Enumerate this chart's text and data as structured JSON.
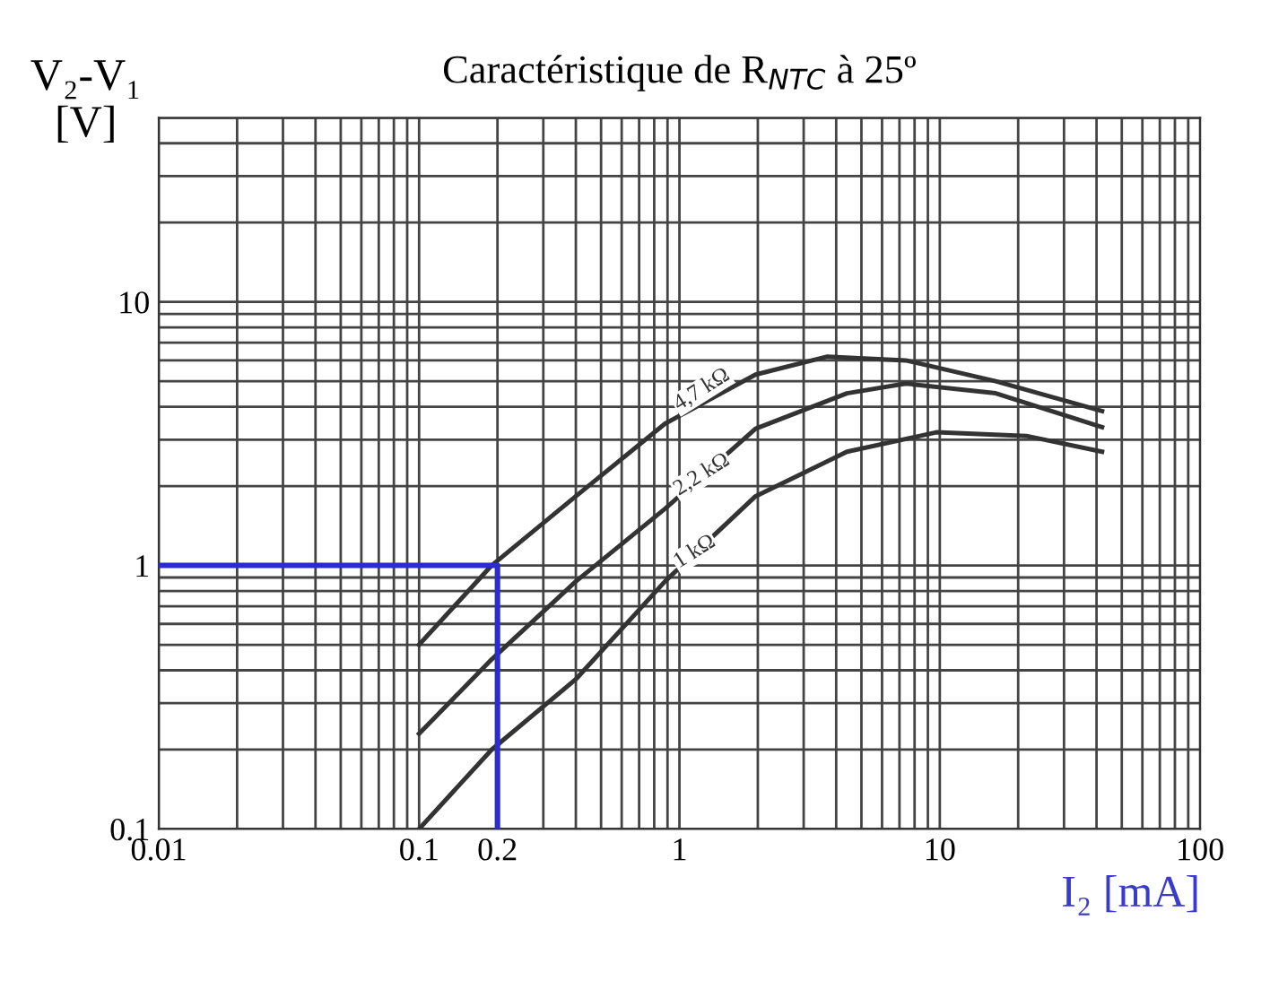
{
  "chart_data": {
    "type": "line",
    "title": "Caractéristique de R$_{NTC}$ à 25º",
    "ylabel": "V₂-V₁\n[V]",
    "xlabel": "I₂ [mA]",
    "log": "xy",
    "xlim": [
      0.01,
      100
    ],
    "ylim": [
      0.1,
      50
    ],
    "xticks": [
      0.01,
      0.1,
      0.2,
      1,
      10,
      100
    ],
    "yticks": [
      0.1,
      1,
      10
    ],
    "grid": true,
    "line_style": "solid",
    "marker": "none",
    "series": [
      {
        "name": "4,7 kΩ",
        "color": "#333333",
        "x": [
          0.1,
          0.19,
          0.4,
          0.88,
          1.96,
          3.7,
          7.4,
          16.4,
          42
        ],
        "values": [
          0.5,
          1.0,
          1.83,
          3.45,
          5.3,
          6.2,
          6.0,
          5.0,
          3.85
        ]
      },
      {
        "name": "2,2 kΩ",
        "color": "#333333",
        "x": [
          0.1,
          0.19,
          0.4,
          0.88,
          1.96,
          4.4,
          7.4,
          16.4,
          42
        ],
        "values": [
          0.23,
          0.44,
          0.87,
          1.64,
          3.3,
          4.5,
          4.9,
          4.5,
          3.35
        ]
      },
      {
        "name": "1 kΩ",
        "color": "#333333",
        "x": [
          0.1,
          0.19,
          0.4,
          0.88,
          1.96,
          4.4,
          9.7,
          21.5,
          42
        ],
        "values": [
          0.1,
          0.2,
          0.37,
          0.87,
          1.83,
          2.7,
          3.2,
          3.1,
          2.7
        ]
      },
      {
        "color": "#2b2bd0",
        "x": [
          0.01,
          0.2,
          0.2
        ],
        "values": [
          1,
          1,
          0.1
        ]
      }
    ]
  }
}
